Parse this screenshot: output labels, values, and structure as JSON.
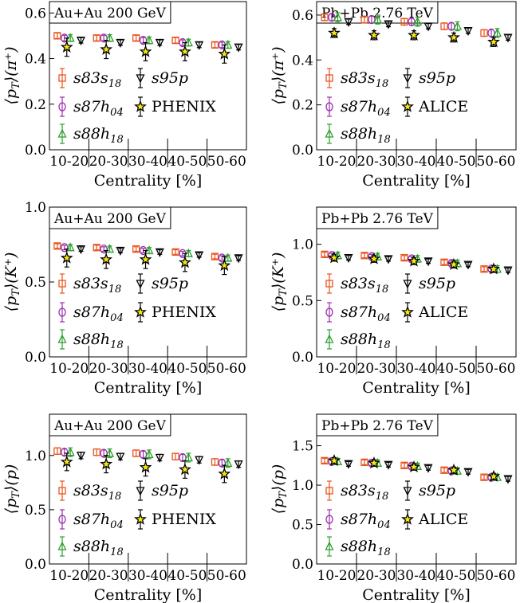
{
  "colors": {
    "s83s18": "#e8541c",
    "s87h04": "#9b2fae",
    "s88h18": "#2e9e2e",
    "s95p": "#000000",
    "exp": "#f5e616"
  },
  "chart_data": [
    {
      "type": "scatter",
      "title": "Au+Au 200 GeV",
      "ylabel": "⟨pT⟩(π⁺)",
      "xlabel": "Centrality [%]",
      "categories": [
        "10-20",
        "20-30",
        "30-40",
        "40-50",
        "50-60"
      ],
      "ylim": [
        0.0,
        0.65
      ],
      "yticks": [
        "0.0",
        "0.2",
        "0.4",
        "0.6"
      ],
      "ytick_values": [
        0.0,
        0.2,
        0.4,
        0.6
      ],
      "series": [
        {
          "name": "s83s18",
          "marker": "square",
          "values": [
            0.5,
            0.49,
            0.49,
            0.48,
            0.46
          ],
          "err": 0.012
        },
        {
          "name": "s87h04",
          "marker": "circle",
          "values": [
            0.49,
            0.49,
            0.48,
            0.47,
            0.46
          ],
          "err": 0.012
        },
        {
          "name": "s88h18",
          "marker": "triangle-up",
          "values": [
            0.49,
            0.49,
            0.48,
            0.47,
            0.46
          ],
          "err": 0.015
        },
        {
          "name": "s95p",
          "marker": "triangle-down",
          "values": [
            0.48,
            0.47,
            0.47,
            0.46,
            0.45
          ],
          "err": 0.012
        },
        {
          "name": "PHENIX",
          "marker": "star",
          "values": [
            0.45,
            0.44,
            0.43,
            0.43,
            0.42
          ],
          "err": 0.04
        }
      ],
      "legend": [
        "s83s18",
        "s95p",
        "s87h04",
        "PHENIX",
        "s88h18"
      ]
    },
    {
      "type": "scatter",
      "title": "Pb+Pb 2.76 TeV",
      "ylabel": "⟨pT⟩(π⁺)",
      "xlabel": "Centrality [%]",
      "categories": [
        "10-20",
        "20-30",
        "30-40",
        "40-50",
        "50-60"
      ],
      "ylim": [
        0.0,
        0.66
      ],
      "yticks": [
        "0.0",
        "0.2",
        "0.4",
        "0.6"
      ],
      "ytick_values": [
        0.0,
        0.2,
        0.4,
        0.6
      ],
      "series": [
        {
          "name": "s83s18",
          "marker": "square",
          "values": [
            0.59,
            0.58,
            0.57,
            0.55,
            0.52
          ],
          "err": 0.015
        },
        {
          "name": "s87h04",
          "marker": "circle",
          "values": [
            0.59,
            0.58,
            0.57,
            0.55,
            0.52
          ],
          "err": 0.015
        },
        {
          "name": "s88h18",
          "marker": "triangle-up",
          "values": [
            0.59,
            0.58,
            0.57,
            0.55,
            0.52
          ],
          "err": 0.02
        },
        {
          "name": "s95p",
          "marker": "triangle-down",
          "values": [
            0.57,
            0.56,
            0.55,
            0.53,
            0.5
          ],
          "err": 0.012
        },
        {
          "name": "ALICE",
          "marker": "star",
          "values": [
            0.52,
            0.51,
            0.51,
            0.5,
            0.48
          ],
          "err": 0.02
        }
      ],
      "legend": [
        "s83s18",
        "s95p",
        "s87h04",
        "ALICE",
        "s88h18"
      ]
    },
    {
      "type": "scatter",
      "title": "Au+Au 200 GeV",
      "ylabel": "⟨pT⟩(K⁺)",
      "xlabel": "Centrality [%]",
      "categories": [
        "10-20",
        "20-30",
        "30-40",
        "40-50",
        "50-60"
      ],
      "ylim": [
        0.0,
        1.0
      ],
      "yticks": [
        "0.0",
        "0.5",
        "1.0"
      ],
      "ytick_values": [
        0.0,
        0.5,
        1.0
      ],
      "series": [
        {
          "name": "s83s18",
          "marker": "square",
          "values": [
            0.74,
            0.73,
            0.72,
            0.7,
            0.67
          ],
          "err": 0.015
        },
        {
          "name": "s87h04",
          "marker": "circle",
          "values": [
            0.73,
            0.72,
            0.71,
            0.69,
            0.66
          ],
          "err": 0.015
        },
        {
          "name": "s88h18",
          "marker": "triangle-up",
          "values": [
            0.73,
            0.72,
            0.71,
            0.69,
            0.66
          ],
          "err": 0.02
        },
        {
          "name": "s95p",
          "marker": "triangle-down",
          "values": [
            0.72,
            0.71,
            0.7,
            0.68,
            0.66
          ],
          "err": 0.015
        },
        {
          "name": "PHENIX",
          "marker": "star",
          "values": [
            0.66,
            0.65,
            0.65,
            0.63,
            0.61
          ],
          "err": 0.06
        }
      ],
      "legend": [
        "s83s18",
        "s95p",
        "s87h04",
        "PHENIX",
        "s88h18"
      ]
    },
    {
      "type": "scatter",
      "title": "Pb+Pb 2.76 TeV",
      "ylabel": "⟨pT⟩(K⁺)",
      "xlabel": "Centrality [%]",
      "categories": [
        "10-20",
        "20-30",
        "30-40",
        "40-50",
        "50-60"
      ],
      "ylim": [
        0.0,
        1.33
      ],
      "yticks": [
        "0.0",
        "0.5",
        "1.0"
      ],
      "ytick_values": [
        0.0,
        0.5,
        1.0
      ],
      "series": [
        {
          "name": "s83s18",
          "marker": "square",
          "values": [
            0.91,
            0.9,
            0.88,
            0.84,
            0.78
          ],
          "err": 0.02
        },
        {
          "name": "s87h04",
          "marker": "circle",
          "values": [
            0.9,
            0.89,
            0.87,
            0.83,
            0.78
          ],
          "err": 0.02
        },
        {
          "name": "s88h18",
          "marker": "triangle-up",
          "values": [
            0.9,
            0.89,
            0.87,
            0.83,
            0.78
          ],
          "err": 0.03
        },
        {
          "name": "s95p",
          "marker": "triangle-down",
          "values": [
            0.88,
            0.87,
            0.85,
            0.82,
            0.77
          ],
          "err": 0.02
        },
        {
          "name": "ALICE",
          "marker": "star",
          "values": [
            0.88,
            0.87,
            0.85,
            0.82,
            0.78
          ],
          "err": 0.03
        }
      ],
      "legend": [
        "s83s18",
        "s95p",
        "s87h04",
        "ALICE",
        "s88h18"
      ]
    },
    {
      "type": "scatter",
      "title": "Au+Au 200 GeV",
      "ylabel": "⟨pT⟩(p)",
      "xlabel": "Centrality [%]",
      "categories": [
        "10-20",
        "20-30",
        "30-40",
        "40-50",
        "50-60"
      ],
      "ylim": [
        0.0,
        1.38
      ],
      "yticks": [
        "0.0",
        "0.5",
        "1.0"
      ],
      "ytick_values": [
        0.0,
        0.5,
        1.0
      ],
      "series": [
        {
          "name": "s83s18",
          "marker": "square",
          "values": [
            1.04,
            1.03,
            1.02,
            0.99,
            0.94
          ],
          "err": 0.03
        },
        {
          "name": "s87h04",
          "marker": "circle",
          "values": [
            1.03,
            1.02,
            1.01,
            0.98,
            0.93
          ],
          "err": 0.03
        },
        {
          "name": "s88h18",
          "marker": "triangle-up",
          "values": [
            1.03,
            1.02,
            1.01,
            0.98,
            0.93
          ],
          "err": 0.04
        },
        {
          "name": "s95p",
          "marker": "triangle-down",
          "values": [
            1.0,
            0.99,
            0.98,
            0.96,
            0.92
          ],
          "err": 0.03
        },
        {
          "name": "PHENIX",
          "marker": "star",
          "values": [
            0.94,
            0.92,
            0.89,
            0.87,
            0.83
          ],
          "err": 0.08
        }
      ],
      "legend": [
        "s83s18",
        "s95p",
        "s87h04",
        "PHENIX",
        "s88h18"
      ]
    },
    {
      "type": "scatter",
      "title": "Pb+Pb 2.76 TeV",
      "ylabel": "⟨pT⟩(p)",
      "xlabel": "Centrality [%]",
      "categories": [
        "10-20",
        "20-30",
        "30-40",
        "40-50",
        "50-60"
      ],
      "ylim": [
        0.0,
        1.9
      ],
      "yticks": [
        "0.0",
        "0.5",
        "1.0",
        "1.5"
      ],
      "ytick_values": [
        0.0,
        0.5,
        1.0,
        1.5
      ],
      "series": [
        {
          "name": "s83s18",
          "marker": "square",
          "values": [
            1.31,
            1.29,
            1.25,
            1.19,
            1.1
          ],
          "err": 0.03
        },
        {
          "name": "s87h04",
          "marker": "circle",
          "values": [
            1.3,
            1.28,
            1.24,
            1.18,
            1.1
          ],
          "err": 0.03
        },
        {
          "name": "s88h18",
          "marker": "triangle-up",
          "values": [
            1.3,
            1.28,
            1.24,
            1.18,
            1.1
          ],
          "err": 0.04
        },
        {
          "name": "s95p",
          "marker": "triangle-down",
          "values": [
            1.27,
            1.26,
            1.22,
            1.17,
            1.08
          ],
          "err": 0.03
        },
        {
          "name": "ALICE",
          "marker": "star",
          "values": [
            1.31,
            1.28,
            1.23,
            1.19,
            1.11
          ],
          "err": 0.04
        }
      ],
      "legend": [
        "s83s18",
        "s95p",
        "s87h04",
        "ALICE",
        "s88h18"
      ]
    }
  ]
}
